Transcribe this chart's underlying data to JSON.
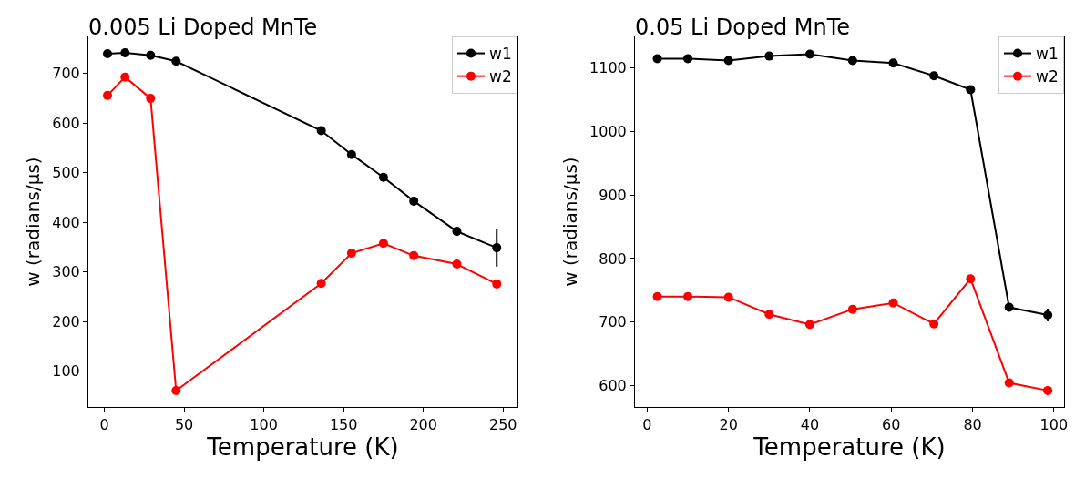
{
  "chart_data": [
    {
      "type": "line",
      "title": "0.005 Li Doped MnTe",
      "xlabel": "Temperature (K)",
      "ylabel": "w (radians/µs)",
      "xlim": [
        -10,
        259
      ],
      "ylim": [
        28,
        775
      ],
      "xticks": [
        0,
        50,
        100,
        150,
        200,
        250
      ],
      "yticks": [
        100,
        200,
        300,
        400,
        500,
        600,
        700
      ],
      "grid": false,
      "legend": "top right",
      "marker": "circle",
      "line_style": "solid",
      "x": [
        2,
        13,
        29,
        45,
        136,
        155,
        175,
        194,
        221,
        246
      ],
      "series": [
        {
          "name": "w1",
          "color": "#000000",
          "values": [
            740,
            742,
            737,
            725,
            585,
            537,
            491,
            443,
            382,
            349
          ],
          "errors": [
            null,
            null,
            null,
            null,
            null,
            null,
            null,
            null,
            null,
            38
          ]
        },
        {
          "name": "w2",
          "color": "#ff0000",
          "values": [
            656,
            693,
            650,
            61,
            277,
            338,
            358,
            333,
            316,
            276
          ]
        }
      ]
    },
    {
      "type": "line",
      "title": "0.05 Li Doped MnTe",
      "xlabel": "Temperature (K)",
      "ylabel": "w (radians/µs)",
      "xlim": [
        -3,
        102.5
      ],
      "ylim": [
        566,
        1150
      ],
      "xticks": [
        0,
        20,
        40,
        60,
        80,
        100
      ],
      "yticks": [
        600,
        700,
        800,
        900,
        1000,
        1100
      ],
      "grid": false,
      "legend": "top right",
      "marker": "circle",
      "line_style": "solid",
      "x": [
        2.5,
        10,
        20,
        30,
        40,
        50.5,
        60.5,
        70.5,
        79.5,
        89,
        98.5
      ],
      "series": [
        {
          "name": "w1",
          "color": "#000000",
          "values": [
            1115,
            1115,
            1112,
            1119,
            1122,
            1112,
            1108,
            1088,
            1066,
            723,
            711
          ],
          "errors": [
            null,
            null,
            null,
            null,
            null,
            null,
            null,
            null,
            null,
            null,
            10
          ]
        },
        {
          "name": "w2",
          "color": "#ff0000",
          "values": [
            740,
            740,
            739,
            712,
            696,
            720,
            730,
            697,
            768,
            604,
            592
          ]
        }
      ]
    }
  ]
}
